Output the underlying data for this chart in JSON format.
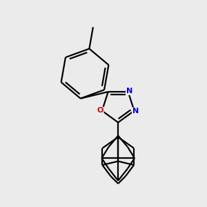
{
  "background_color": "#ebebeb",
  "bond_color": "#000000",
  "N_color": "#0000cc",
  "O_color": "#cc0000",
  "line_width": 1.6,
  "figsize": [
    3.0,
    3.0
  ],
  "dpi": 100,
  "xlim": [
    0.2,
    3.0
  ],
  "ylim": [
    0.1,
    3.2
  ]
}
